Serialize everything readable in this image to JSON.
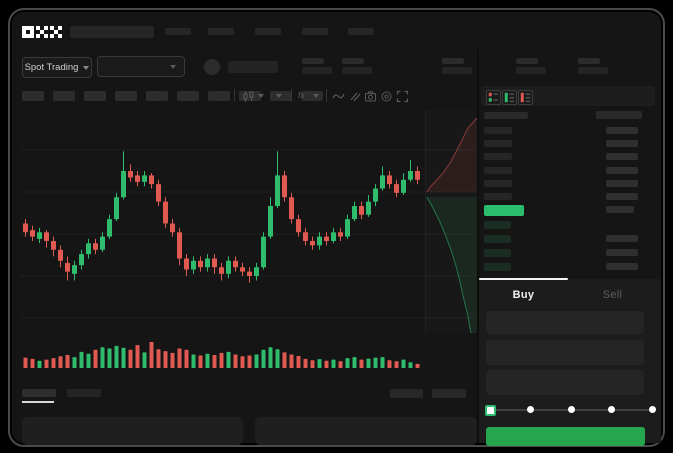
{
  "brand": {
    "logo_text": "OKX"
  },
  "market_selector": {
    "label": "Spot Trading"
  },
  "trade_panel": {
    "tabs": [
      {
        "label": "Buy",
        "active": true
      },
      {
        "label": "Sell",
        "active": false
      }
    ],
    "field_count": 3,
    "slider": {
      "stops": 5,
      "active_stop": 0
    },
    "submit_label": ""
  },
  "layout_counts": {
    "top_nav_items": 5,
    "header_stat_pairs": 5,
    "timeframe_buttons": 10,
    "orderbook_ask_rows": 6,
    "orderbook_bid_rows": 4,
    "bottom_tabs": 2,
    "bottom_right_chips": 2,
    "bottom_panels": 2
  },
  "colors": {
    "up": "#2fbc6c",
    "down": "#e05a52",
    "accent_button": "#27a44e",
    "orderbook_last_price_highlight": "#2bbd6e",
    "window_bg": "#151515",
    "panel_bg": "#1c1c1c",
    "placeholder": "#2a2a2a",
    "text_primary": "#f0f0f0",
    "text_muted": "#5f5f5f",
    "slider_track": "#3f3f3f",
    "active_tab_indicator": "#f5f5f5"
  },
  "chart_data": {
    "type": "candlestick",
    "title": "",
    "xlabel": "",
    "ylabel": "",
    "axis_labels_visible": false,
    "grid": "faint-horizontal",
    "up_color": "#2fbc6c",
    "down_color": "#e05a52",
    "x_count": 57,
    "ohlc": [
      [
        50,
        52,
        44,
        46
      ],
      [
        47,
        49,
        42,
        44
      ],
      [
        43,
        48,
        41,
        46
      ],
      [
        46,
        47,
        39,
        42
      ],
      [
        42,
        44,
        35,
        38
      ],
      [
        38,
        40,
        30,
        33
      ],
      [
        32,
        35,
        24,
        28
      ],
      [
        27,
        33,
        24,
        31
      ],
      [
        31,
        38,
        29,
        36
      ],
      [
        36,
        43,
        34,
        41
      ],
      [
        41,
        43,
        36,
        38
      ],
      [
        38,
        46,
        37,
        44
      ],
      [
        44,
        54,
        43,
        52
      ],
      [
        52,
        64,
        51,
        62
      ],
      [
        62,
        83,
        61,
        74
      ],
      [
        74,
        77,
        69,
        71
      ],
      [
        72,
        74,
        67,
        69
      ],
      [
        69,
        74,
        67,
        72
      ],
      [
        72,
        73,
        66,
        68
      ],
      [
        68,
        70,
        58,
        60
      ],
      [
        60,
        62,
        48,
        50
      ],
      [
        50,
        52,
        44,
        46
      ],
      [
        46,
        48,
        31,
        34
      ],
      [
        34,
        36,
        26,
        29
      ],
      [
        29,
        35,
        27,
        33
      ],
      [
        33,
        35,
        28,
        30
      ],
      [
        30,
        36,
        28,
        34
      ],
      [
        34,
        36,
        27,
        30
      ],
      [
        30,
        32,
        24,
        27
      ],
      [
        27,
        35,
        25,
        33
      ],
      [
        33,
        35,
        28,
        30
      ],
      [
        30,
        32,
        26,
        28
      ],
      [
        28,
        30,
        23,
        26
      ],
      [
        26,
        32,
        24,
        30
      ],
      [
        30,
        46,
        29,
        44
      ],
      [
        44,
        62,
        43,
        58
      ],
      [
        58,
        83,
        57,
        72
      ],
      [
        72,
        74,
        60,
        62
      ],
      [
        62,
        64,
        50,
        52
      ],
      [
        52,
        54,
        44,
        46
      ],
      [
        46,
        48,
        40,
        42
      ],
      [
        42,
        44,
        38,
        40
      ],
      [
        40,
        46,
        38,
        44
      ],
      [
        44,
        46,
        40,
        42
      ],
      [
        42,
        48,
        41,
        46
      ],
      [
        46,
        48,
        42,
        44
      ],
      [
        44,
        54,
        43,
        52
      ],
      [
        52,
        60,
        51,
        58
      ],
      [
        58,
        60,
        52,
        54
      ],
      [
        54,
        63,
        53,
        60
      ],
      [
        60,
        68,
        58,
        66
      ],
      [
        66,
        76,
        65,
        72
      ],
      [
        72,
        74,
        66,
        68
      ],
      [
        68,
        70,
        62,
        64
      ],
      [
        64,
        73,
        63,
        70
      ],
      [
        70,
        79,
        69,
        74
      ],
      [
        74,
        76,
        68,
        70
      ]
    ],
    "volume": [
      40,
      35,
      28,
      32,
      38,
      45,
      50,
      42,
      62,
      55,
      70,
      80,
      75,
      85,
      78,
      70,
      88,
      60,
      100,
      72,
      65,
      58,
      75,
      70,
      52,
      48,
      55,
      50,
      58,
      62,
      52,
      45,
      48,
      52,
      70,
      80,
      72,
      60,
      52,
      46,
      35,
      30,
      34,
      28,
      32,
      26,
      38,
      42,
      32,
      36,
      40,
      42,
      30,
      26,
      32,
      22,
      16
    ]
  },
  "depth_chart": {
    "type": "area",
    "orientation": "vertical",
    "asks_color": "#e05a52",
    "bids_color": "#2fbc6c",
    "asks_points": [
      [
        477,
        118
      ],
      [
        468,
        128
      ],
      [
        462,
        140
      ],
      [
        456,
        152
      ],
      [
        450,
        163
      ],
      [
        443,
        173
      ],
      [
        436,
        181
      ],
      [
        430,
        187
      ],
      [
        427,
        192
      ]
    ],
    "bids_points": [
      [
        427,
        197
      ],
      [
        433,
        208
      ],
      [
        439,
        220
      ],
      [
        445,
        234
      ],
      [
        451,
        250
      ],
      [
        456,
        266
      ],
      [
        460,
        282
      ],
      [
        464,
        300
      ],
      [
        468,
        316
      ],
      [
        470,
        328
      ],
      [
        471,
        333
      ]
    ]
  },
  "order_book": {
    "view_icons": [
      "book-combined-icon",
      "book-bids-icon",
      "book-asks-icon"
    ],
    "ask_rows": 6,
    "bid_rows": 4,
    "bid_rows_with_amount": [
      1,
      2,
      3
    ],
    "last_price_row": {
      "highlighted": true,
      "direction": "up"
    }
  }
}
